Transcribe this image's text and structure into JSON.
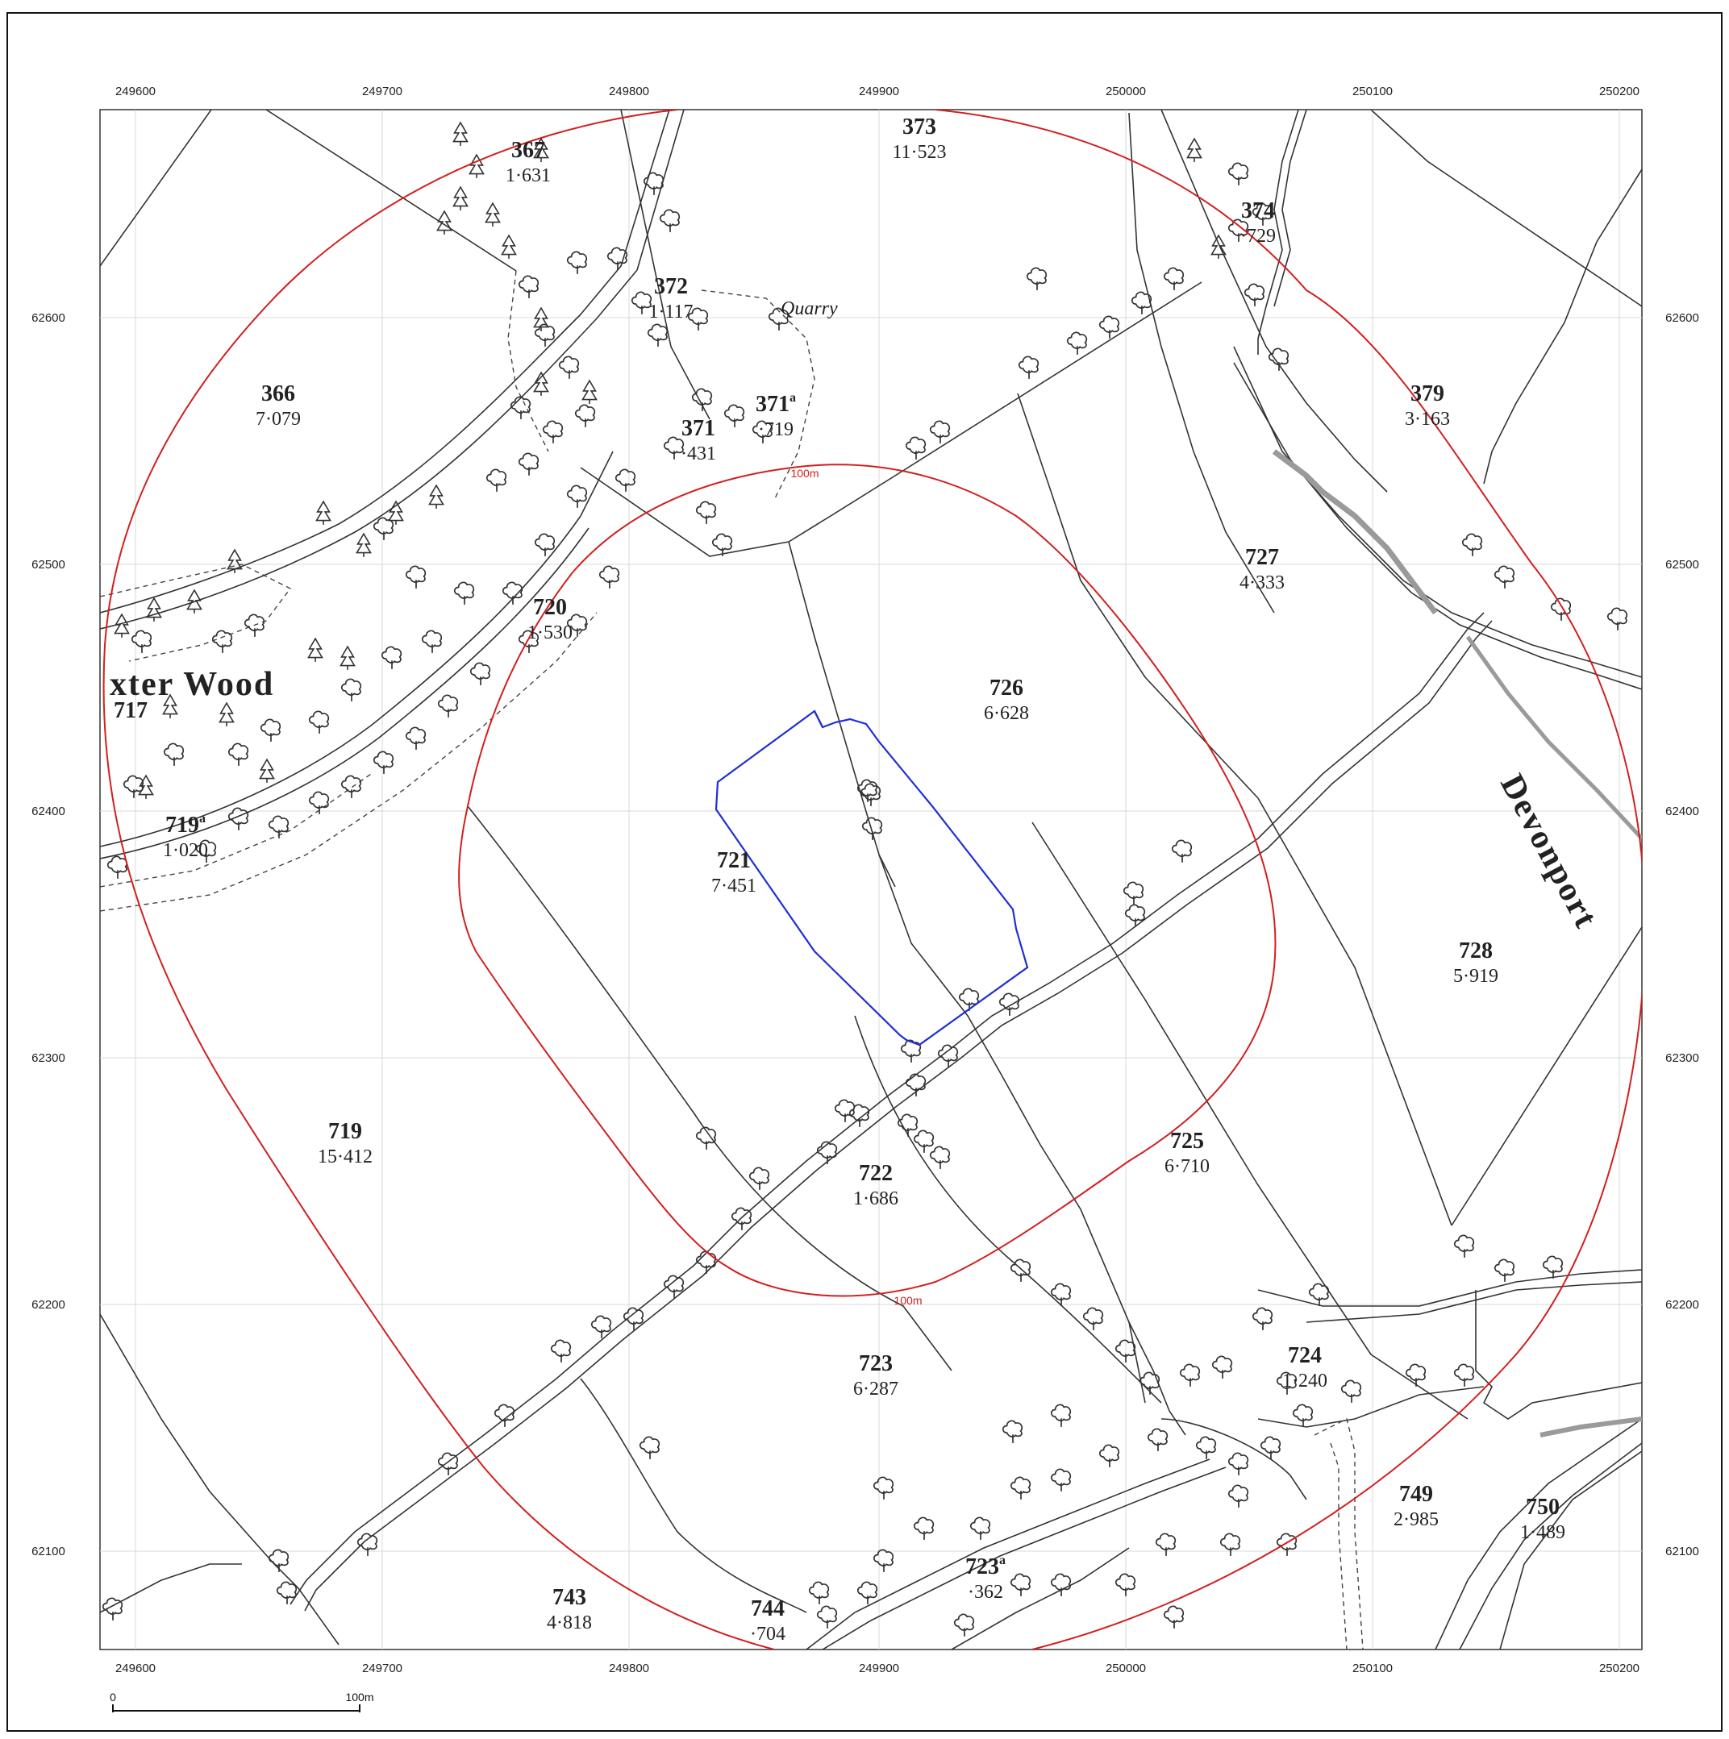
{
  "grid": {
    "eastings": [
      "249600",
      "249700",
      "249800",
      "249900",
      "250000",
      "250100",
      "250200"
    ],
    "northings": [
      "62600",
      "62500",
      "62400",
      "62300",
      "62200",
      "62100"
    ]
  },
  "parcels": [
    {
      "number": "373",
      "area": "11·523"
    },
    {
      "number": "367",
      "area": "1·631"
    },
    {
      "number": "372",
      "area": "1·117"
    },
    {
      "number": "374",
      "area": "·729"
    },
    {
      "number": "366",
      "area": "7·079"
    },
    {
      "number": "371",
      "area": "·431"
    },
    {
      "number": "371",
      "sup": "a",
      "area": "·719"
    },
    {
      "number": "379",
      "area": "3·163"
    },
    {
      "number": "727",
      "area": "4·333"
    },
    {
      "number": "720",
      "area": "1·530"
    },
    {
      "number": "726",
      "area": "6·628"
    },
    {
      "number": "717",
      "area": ""
    },
    {
      "number": "719",
      "sup": "a",
      "area": "1·020"
    },
    {
      "number": "721",
      "area": "7·451"
    },
    {
      "number": "728",
      "area": "5·919"
    },
    {
      "number": "719",
      "area": "15·412"
    },
    {
      "number": "725",
      "area": "6·710"
    },
    {
      "number": "722",
      "area": "1·686"
    },
    {
      "number": "723",
      "area": "6·287"
    },
    {
      "number": "724",
      "area": "1·240"
    },
    {
      "number": "749",
      "area": "2·985"
    },
    {
      "number": "750",
      "area": "1·489"
    },
    {
      "number": "723",
      "sup": "a",
      "area": "·362"
    },
    {
      "number": "743",
      "area": "4·818"
    },
    {
      "number": "744",
      "area": "·704"
    }
  ],
  "place_names": {
    "wood": "xter Wood",
    "quarry": "Quarry",
    "road": "Devonport"
  },
  "buffers": {
    "inner_label_top": "100m",
    "inner_label_bottom": "100m"
  },
  "scale_bar": {
    "start": "0",
    "end": "100m"
  },
  "colors": {
    "site_boundary": "#1f2fd6",
    "buffer": "#d21f1f",
    "linework": "#333333",
    "grid": "#d8d8d8"
  }
}
